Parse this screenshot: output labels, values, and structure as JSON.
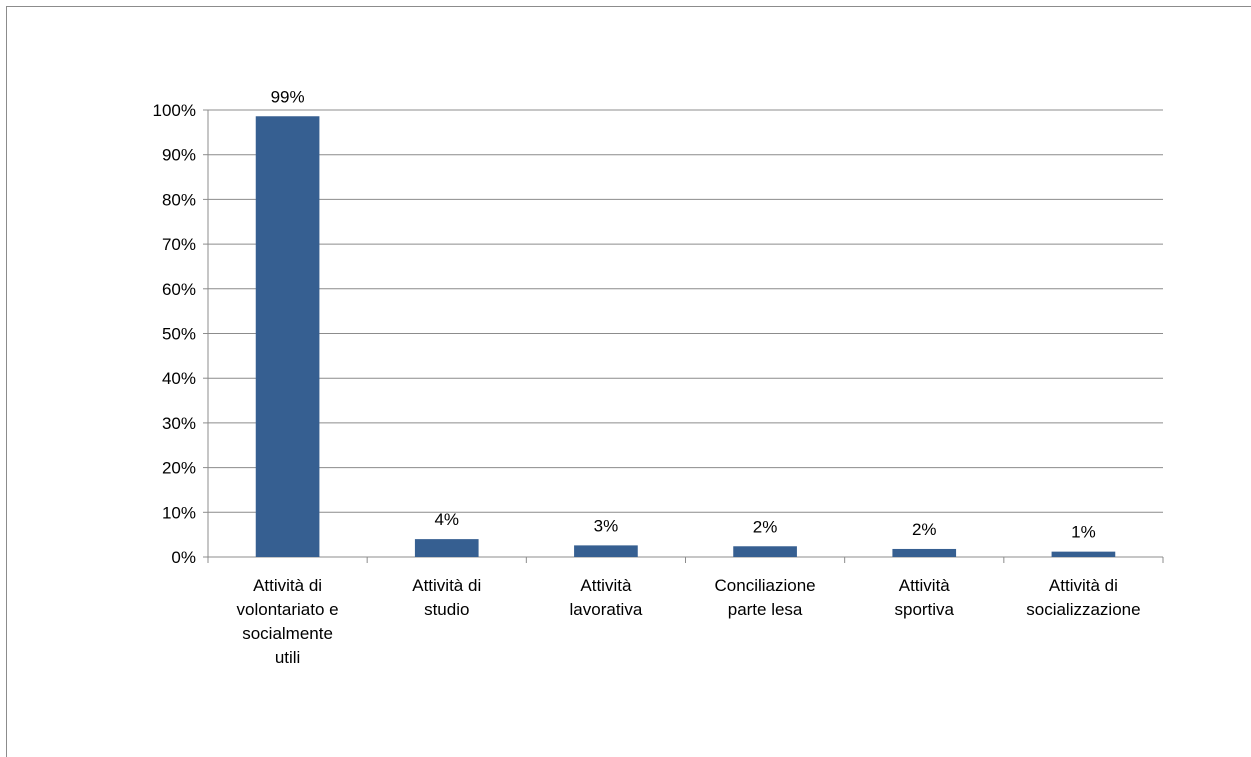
{
  "chart_data": {
    "type": "bar",
    "title": "",
    "xlabel": "",
    "ylabel": "",
    "categories": [
      [
        "Attività di",
        "volontariato e",
        "socialmente",
        "utili"
      ],
      [
        "Attività di",
        "studio"
      ],
      [
        "Attività",
        "lavorativa"
      ],
      [
        "Conciliazione",
        "parte lesa"
      ],
      [
        "Attività",
        "sportiva"
      ],
      [
        "Attività di",
        "socializzazione"
      ]
    ],
    "values": [
      98.6,
      4.0,
      2.6,
      2.4,
      1.8,
      1.2
    ],
    "data_labels": [
      "99%",
      "4%",
      "3%",
      "2%",
      "2%",
      "1%"
    ],
    "y_ticks": [
      "0%",
      "10%",
      "20%",
      "30%",
      "40%",
      "50%",
      "60%",
      "70%",
      "80%",
      "90%",
      "100%"
    ],
    "ylim": [
      0,
      100
    ],
    "grid": true,
    "legend": "none",
    "bar_color": "#365f91",
    "grid_color": "#8c8c8c",
    "axis_color": "#8c8c8c"
  }
}
